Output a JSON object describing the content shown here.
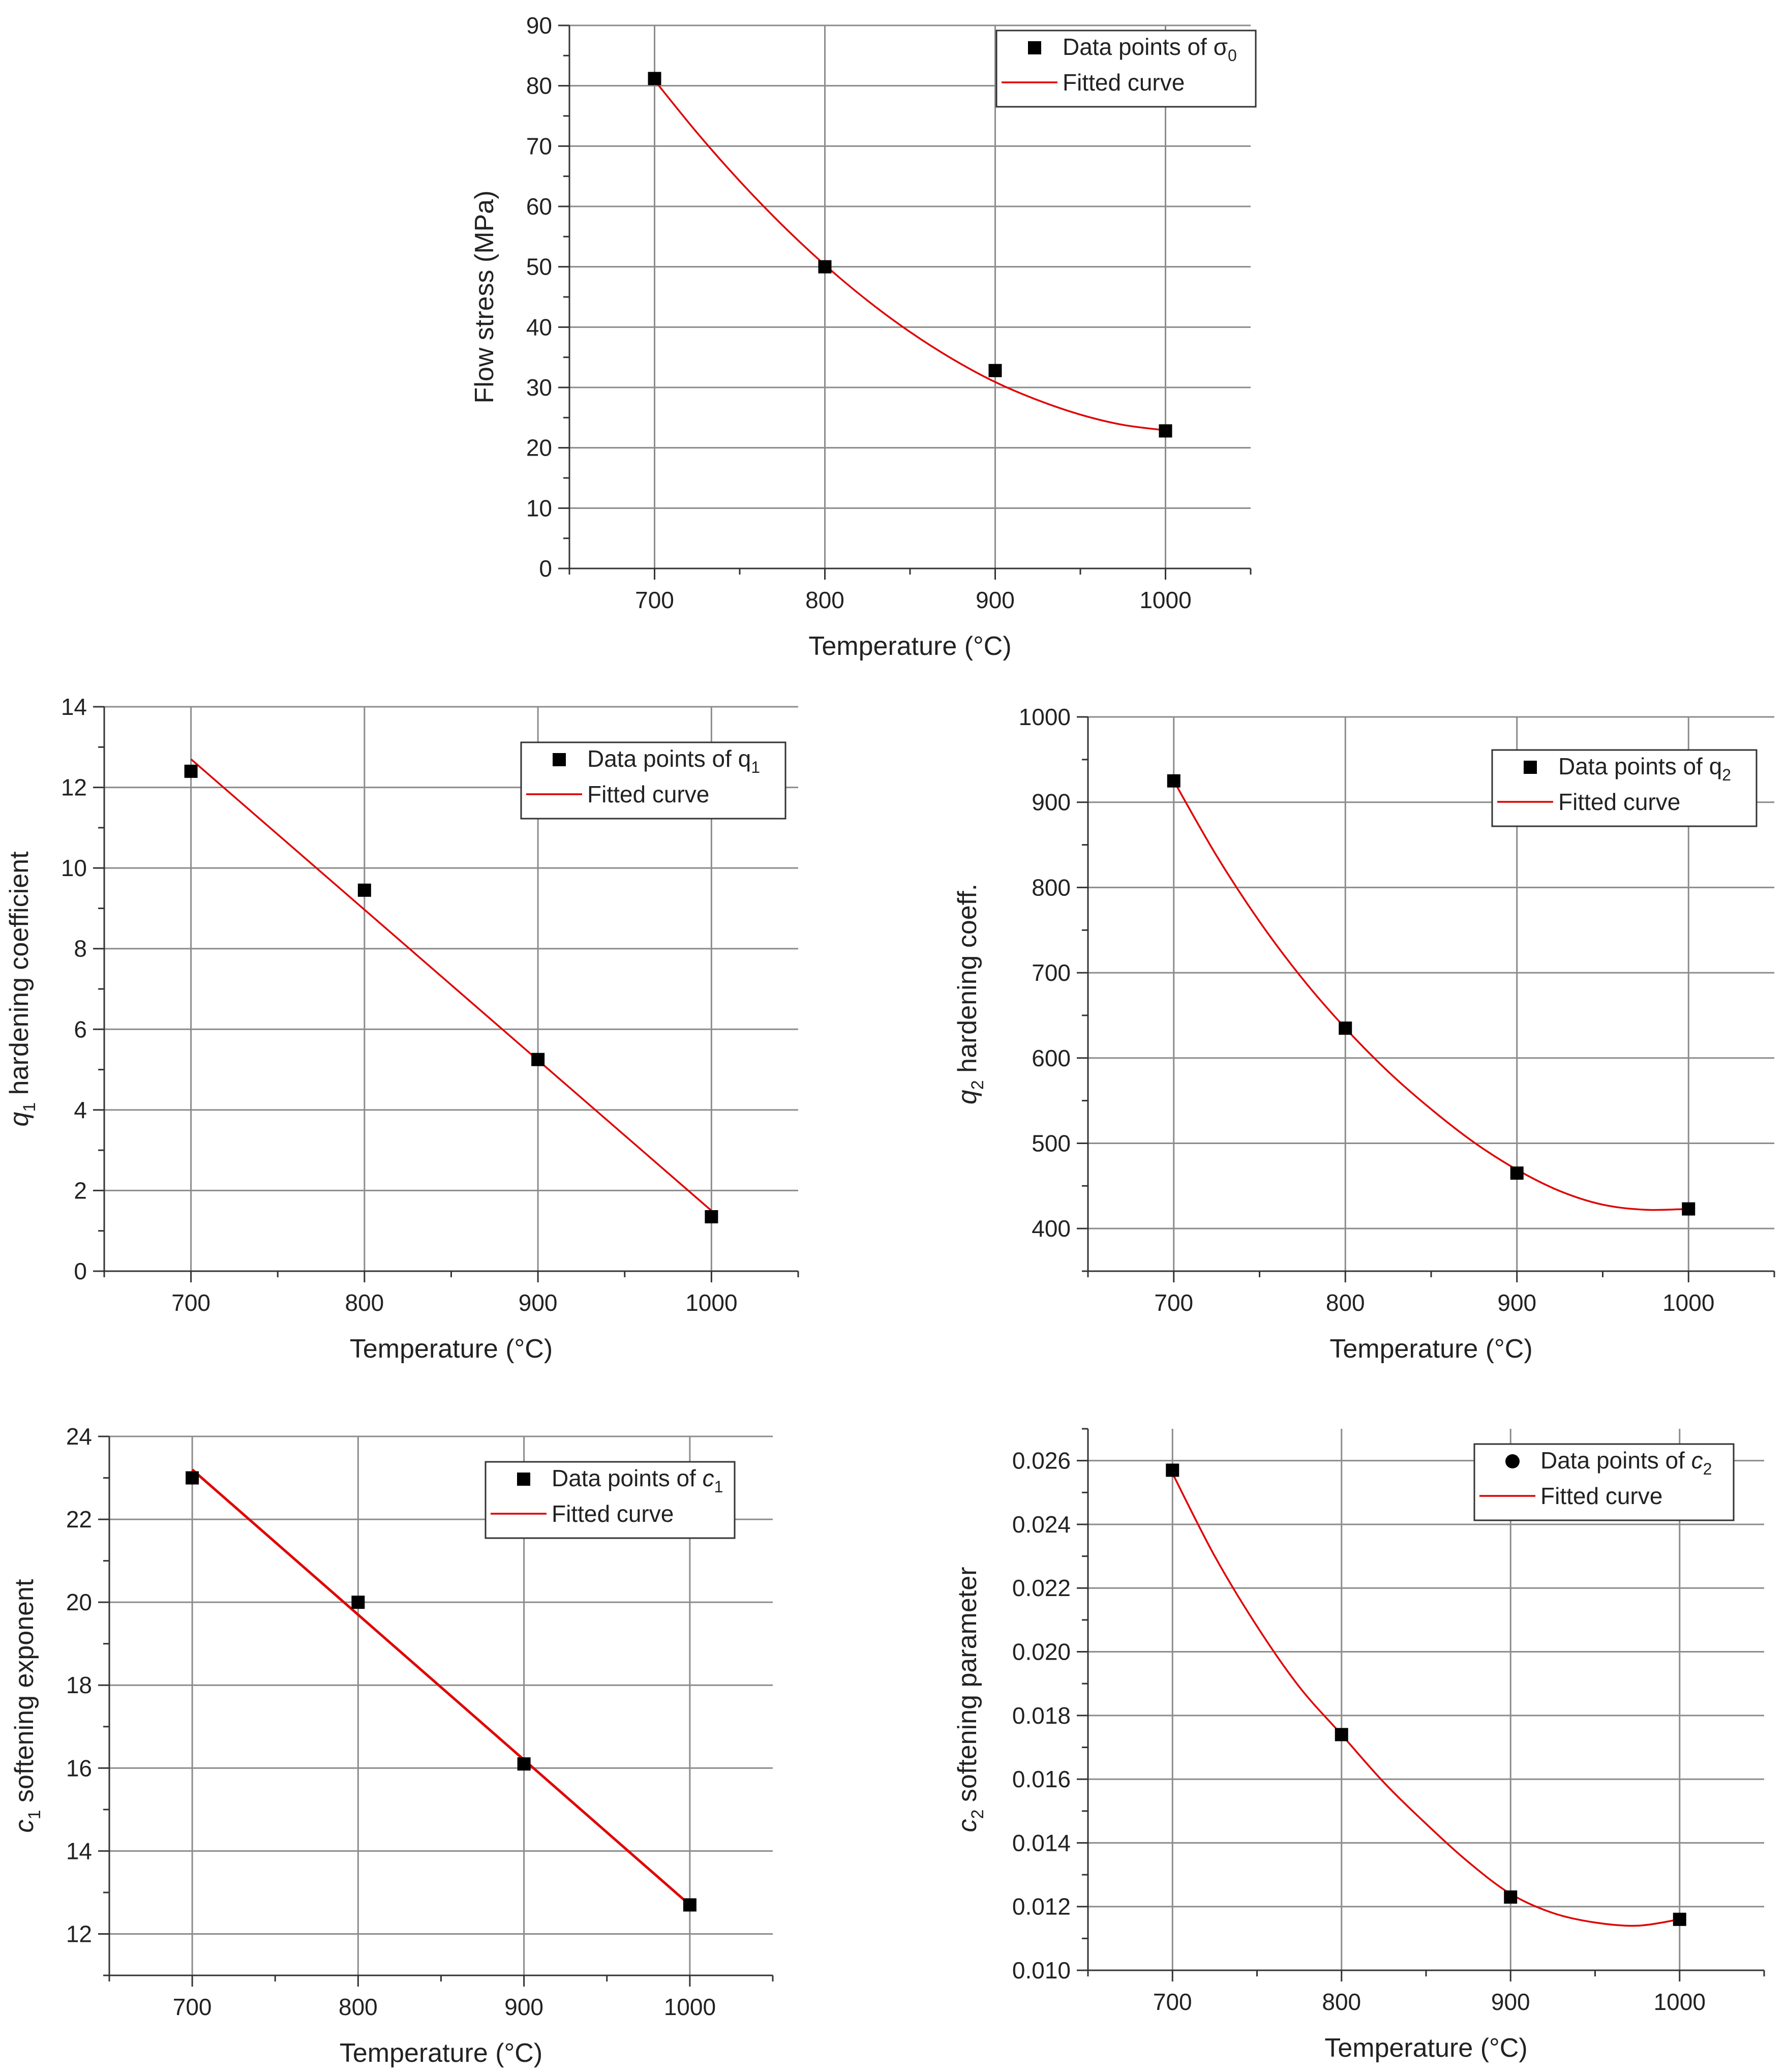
{
  "colors": {
    "grid": "#8c8c8c",
    "axis": "#333333",
    "point": "#000000",
    "fit": "#e00000",
    "text": "#222222"
  },
  "chart_data": [
    {
      "type": "scatter",
      "id": "sigma0",
      "title": "",
      "xlabel": "Temperature (°C)",
      "ylabel": "Flow stress (MPa)",
      "xlim": [
        650,
        1050
      ],
      "ylim": [
        0,
        90
      ],
      "xticks": [
        700,
        800,
        900,
        1000
      ],
      "xtick_labels": [
        "700",
        "800",
        "900",
        "1000"
      ],
      "yticks": [
        0,
        10,
        20,
        30,
        40,
        50,
        60,
        70,
        80,
        90
      ],
      "ytick_labels": [
        "0",
        "10",
        "20",
        "30",
        "40",
        "50",
        "60",
        "70",
        "80",
        "90"
      ],
      "grid": true,
      "legend_position": "top-right",
      "series": [
        {
          "name": "Data points of σ",
          "sub": "0",
          "kind": "points",
          "marker": "square",
          "x": [
            700,
            800,
            900,
            1000
          ],
          "y": [
            81.2,
            50.0,
            32.8,
            22.8
          ]
        },
        {
          "name": "Fitted curve",
          "kind": "fit",
          "x": [
            700,
            725,
            750,
            775,
            800,
            825,
            850,
            875,
            900,
            925,
            950,
            975,
            1000
          ],
          "y": [
            80.9,
            72.2,
            64.2,
            56.9,
            50.3,
            44.4,
            39.2,
            34.7,
            30.9,
            27.9,
            25.5,
            23.8,
            22.9
          ]
        }
      ]
    },
    {
      "type": "scatter",
      "id": "q1",
      "title": "",
      "xlabel": "Temperature (°C)",
      "ylabel": "q",
      "ylabel_sub": "1",
      "ylabel_rest": " hardening coefficient",
      "xlim": [
        650,
        1050
      ],
      "ylim": [
        0,
        14
      ],
      "xticks": [
        700,
        800,
        900,
        1000
      ],
      "xtick_labels": [
        "700",
        "800",
        "900",
        "1000"
      ],
      "yticks": [
        0,
        2,
        4,
        6,
        8,
        10,
        12,
        14
      ],
      "ytick_labels": [
        "0",
        "2",
        "4",
        "6",
        "8",
        "10",
        "12",
        "14"
      ],
      "grid": true,
      "legend_position": "top-right",
      "series": [
        {
          "name": "Data points of q",
          "sub": "1",
          "kind": "points",
          "marker": "square",
          "x": [
            700,
            800,
            900,
            1000
          ],
          "y": [
            12.4,
            9.45,
            5.25,
            1.35
          ]
        },
        {
          "name": "Fitted curve",
          "kind": "fit",
          "x": [
            700,
            1000
          ],
          "y": [
            12.7,
            1.5
          ]
        }
      ]
    },
    {
      "type": "scatter",
      "id": "q2",
      "title": "",
      "xlabel": "Temperature (°C)",
      "ylabel": "q",
      "ylabel_sub": "2",
      "ylabel_rest": " hardening coeff.",
      "xlim": [
        650,
        1050
      ],
      "ylim": [
        350,
        1000
      ],
      "xticks": [
        700,
        800,
        900,
        1000
      ],
      "xtick_labels": [
        "700",
        "800",
        "900",
        "1000"
      ],
      "yticks": [
        400,
        500,
        600,
        700,
        800,
        900,
        1000
      ],
      "ytick_labels": [
        "400",
        "500",
        "600",
        "700",
        "800",
        "900",
        "1000"
      ],
      "grid": true,
      "legend_position": "top-right",
      "series": [
        {
          "name": "Data points of q",
          "sub": "2",
          "kind": "points",
          "marker": "square",
          "x": [
            700,
            800,
            900,
            1000
          ],
          "y": [
            925,
            635,
            465,
            423
          ]
        },
        {
          "name": "Fitted curve",
          "kind": "fit",
          "x": [
            700,
            725,
            750,
            775,
            800,
            825,
            850,
            875,
            900,
            925,
            950,
            975,
            1000
          ],
          "y": [
            925,
            837,
            760,
            693,
            635,
            584,
            540,
            501,
            469,
            444,
            428,
            422,
            423
          ]
        }
      ]
    },
    {
      "type": "scatter",
      "id": "c1",
      "title": "",
      "xlabel": "Temperature (°C)",
      "ylabel": "c",
      "ylabel_sub": "1",
      "ylabel_rest": " softening exponent",
      "xlim": [
        650,
        1050
      ],
      "ylim": [
        11,
        24
      ],
      "xticks": [
        700,
        800,
        900,
        1000
      ],
      "xtick_labels": [
        "700",
        "800",
        "900",
        "1000"
      ],
      "yticks": [
        12,
        14,
        16,
        18,
        20,
        22,
        24
      ],
      "ytick_labels": [
        "12",
        "14",
        "16",
        "18",
        "20",
        "22",
        "24"
      ],
      "grid": true,
      "legend_position": "top-right",
      "series": [
        {
          "name": "Data points of ",
          "sub_italic": "c",
          "sub": "1",
          "kind": "points",
          "marker": "square",
          "x": [
            700,
            800,
            900,
            1000
          ],
          "y": [
            23.0,
            20.0,
            16.1,
            12.7
          ]
        },
        {
          "name": "Fitted curve",
          "kind": "fit",
          "x": [
            700,
            1000
          ],
          "y": [
            23.2,
            12.7
          ]
        }
      ]
    },
    {
      "type": "scatter",
      "id": "c2",
      "title": "",
      "xlabel": "Temperature (°C)",
      "ylabel": "c",
      "ylabel_sub": "2",
      "ylabel_rest": " softening parameter",
      "xlim": [
        650,
        1050
      ],
      "ylim": [
        0.01,
        0.027
      ],
      "xticks": [
        700,
        800,
        900,
        1000
      ],
      "xtick_labels": [
        "700",
        "800",
        "900",
        "1000"
      ],
      "yticks": [
        0.01,
        0.012,
        0.014,
        0.016,
        0.018,
        0.02,
        0.022,
        0.024,
        0.026
      ],
      "ytick_labels": [
        "0.010",
        "0.012",
        "0.014",
        "0.016",
        "0.018",
        "0.020",
        "0.022",
        "0.024",
        "0.026"
      ],
      "grid": true,
      "legend_position": "top-right",
      "series": [
        {
          "name": "Data points of ",
          "sub_italic": "c",
          "sub": "2",
          "kind": "points",
          "marker": "circle",
          "x": [
            700,
            800,
            900,
            1000
          ],
          "y": [
            0.0257,
            0.0174,
            0.0123,
            0.0116
          ]
        },
        {
          "name": "Fitted curve",
          "kind": "fit",
          "x": [
            700,
            725,
            750,
            775,
            800,
            825,
            850,
            875,
            900,
            925,
            950,
            975,
            1000
          ],
          "y": [
            0.0256,
            0.023,
            0.0208,
            0.0189,
            0.0174,
            0.0159,
            0.0146,
            0.0134,
            0.0124,
            0.0118,
            0.0115,
            0.0114,
            0.0116
          ]
        }
      ]
    }
  ]
}
